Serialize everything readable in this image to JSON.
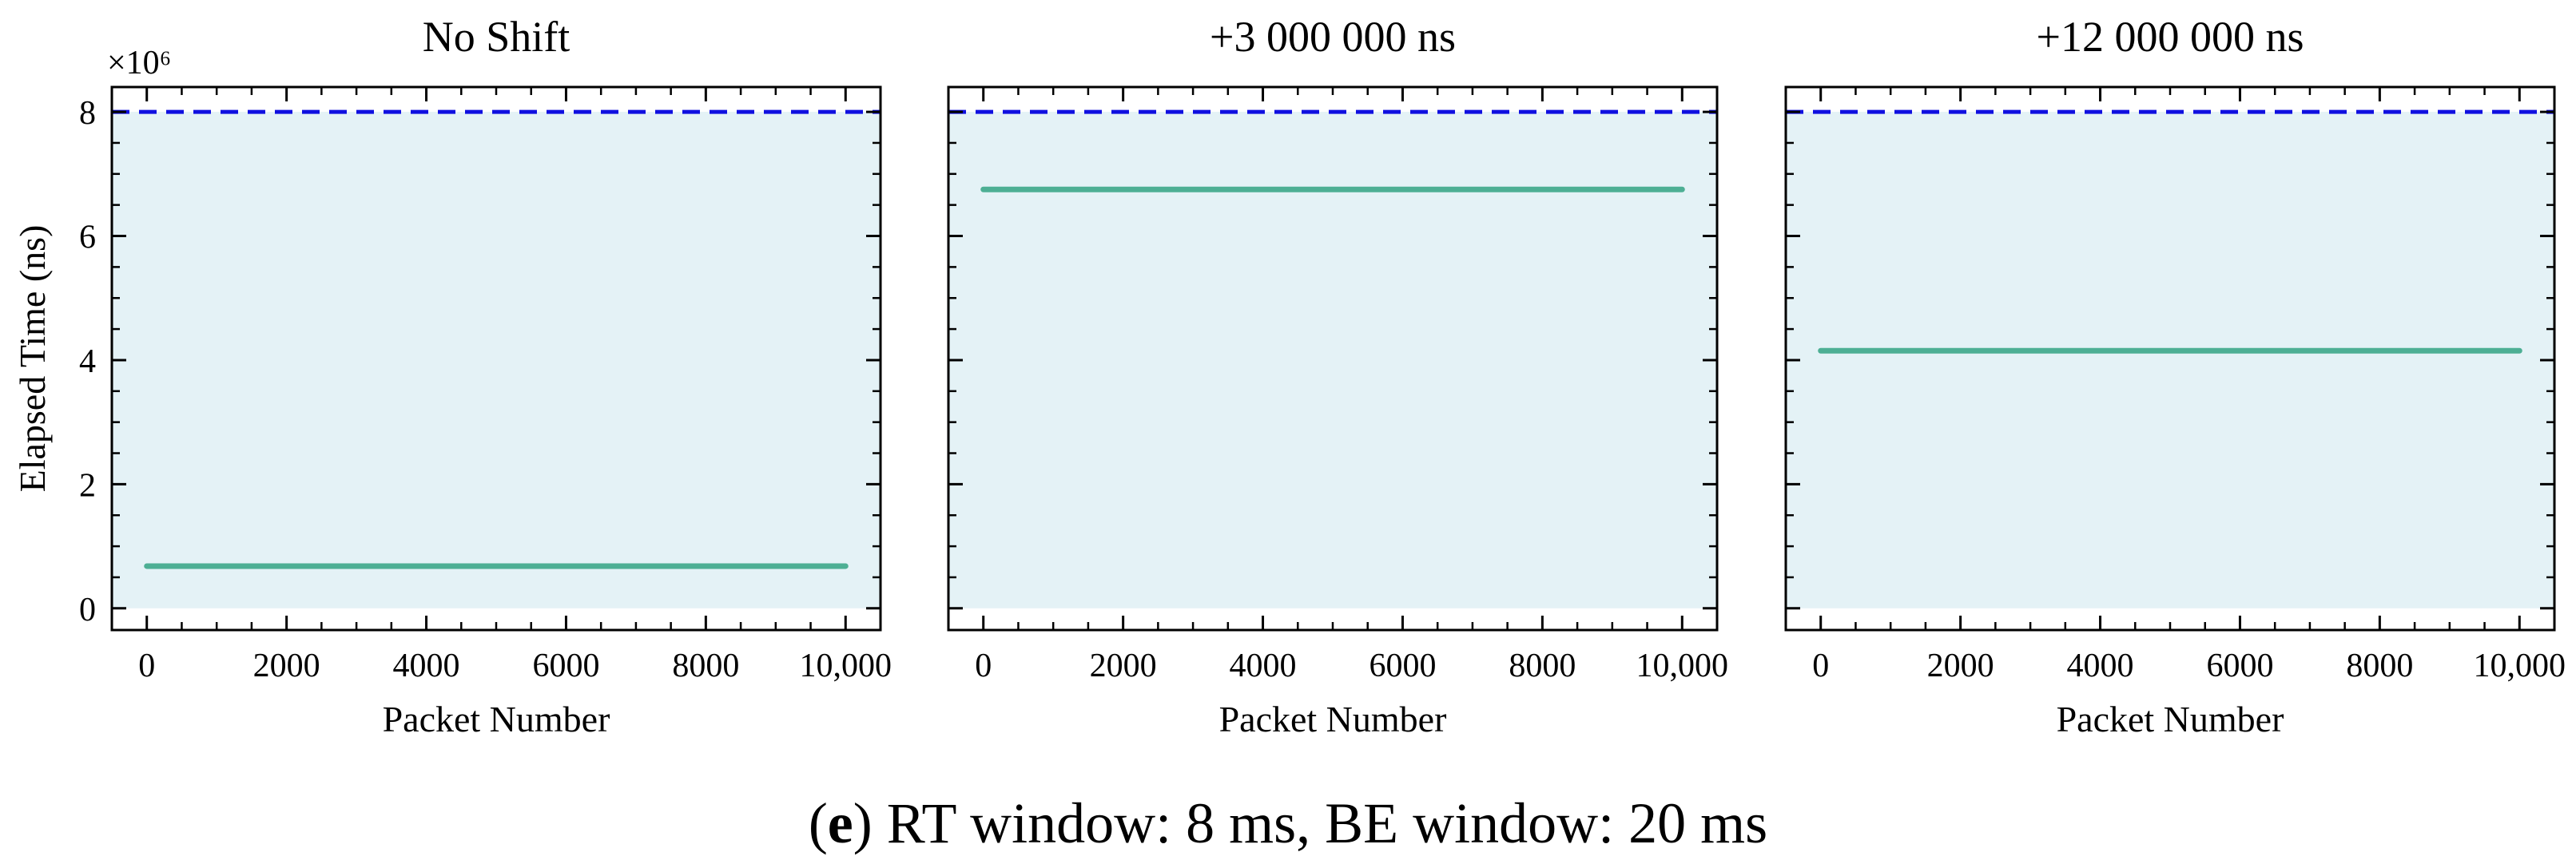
{
  "chart_data": [
    {
      "type": "line",
      "title": "No Shift",
      "xlabel": "Packet Number",
      "ylabel": "Elapsed Time (ns)",
      "y_multiplier_label": "×10⁶",
      "xlim": [
        -500,
        10500
      ],
      "ylim": [
        -0.35,
        8.4
      ],
      "xticks": [
        0,
        2000,
        4000,
        6000,
        8000,
        10000
      ],
      "xtick_labels": [
        "0",
        "2000",
        "4000",
        "6000",
        "8000",
        "10,000"
      ],
      "yticks": [
        0,
        2,
        4,
        6,
        8
      ],
      "ytick_labels": [
        "0",
        "2",
        "4",
        "6",
        "8"
      ],
      "shaded_region": {
        "y0": 0,
        "y1": 8,
        "color": "#e4f2f6"
      },
      "reference_line": {
        "y": 8,
        "style": "dashed",
        "color": "#1010e0"
      },
      "series": [
        {
          "x": [
            0,
            10000
          ],
          "y": [
            0.68,
            0.68
          ],
          "color": "#4daf94"
        }
      ],
      "grid": false
    },
    {
      "type": "line",
      "title": "+3 000 000 ns",
      "xlabel": "Packet Number",
      "ylabel": "",
      "xlim": [
        -500,
        10500
      ],
      "ylim": [
        -0.35,
        8.4
      ],
      "xticks": [
        0,
        2000,
        4000,
        6000,
        8000,
        10000
      ],
      "xtick_labels": [
        "0",
        "2000",
        "4000",
        "6000",
        "8000",
        "10,000"
      ],
      "yticks": [
        0,
        2,
        4,
        6,
        8
      ],
      "ytick_labels": [],
      "shaded_region": {
        "y0": 0,
        "y1": 8,
        "color": "#e4f2f6"
      },
      "reference_line": {
        "y": 8,
        "style": "dashed",
        "color": "#1010e0"
      },
      "series": [
        {
          "x": [
            0,
            10000
          ],
          "y": [
            6.75,
            6.75
          ],
          "color": "#4daf94"
        }
      ],
      "grid": false
    },
    {
      "type": "line",
      "title": "+12 000 000 ns",
      "xlabel": "Packet Number",
      "ylabel": "",
      "xlim": [
        -500,
        10500
      ],
      "ylim": [
        -0.35,
        8.4
      ],
      "xticks": [
        0,
        2000,
        4000,
        6000,
        8000,
        10000
      ],
      "xtick_labels": [
        "0",
        "2000",
        "4000",
        "6000",
        "8000",
        "10,000"
      ],
      "yticks": [
        0,
        2,
        4,
        6,
        8
      ],
      "ytick_labels": [],
      "shaded_region": {
        "y0": 0,
        "y1": 8,
        "color": "#e4f2f6"
      },
      "reference_line": {
        "y": 8,
        "style": "dashed",
        "color": "#1010e0"
      },
      "series": [
        {
          "x": [
            0,
            10000
          ],
          "y": [
            4.15,
            4.15
          ],
          "color": "#4daf94"
        }
      ],
      "grid": false
    }
  ],
  "caption": {
    "label": "e",
    "text": "RT window: 8 ms, BE window: 20 ms"
  }
}
